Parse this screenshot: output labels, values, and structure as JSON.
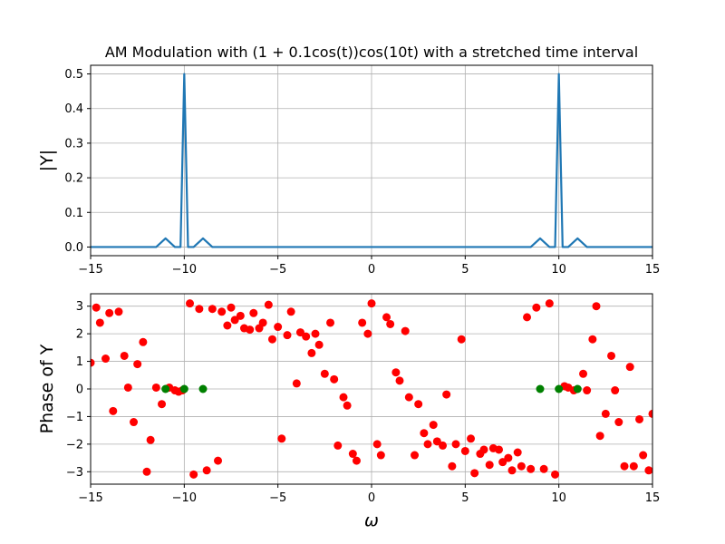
{
  "chart_data": [
    {
      "type": "line",
      "title": "AM Modulation with (1 + 0.1cos(t))cos(10t) with a stretched time interval",
      "xlabel": "",
      "ylabel": "|Y|",
      "xlim": [
        -15,
        15
      ],
      "ylim": [
        -0.025,
        0.525
      ],
      "xticks": [
        -15,
        -10,
        -5,
        0,
        5,
        10,
        15
      ],
      "xtick_labels": [
        "−15",
        "−10",
        "−5",
        "0",
        "5",
        "10",
        "15"
      ],
      "yticks": [
        0.0,
        0.1,
        0.2,
        0.3,
        0.4,
        0.5
      ],
      "ytick_labels": [
        "0.0",
        "0.1",
        "0.2",
        "0.3",
        "0.4",
        "0.5"
      ],
      "grid": true,
      "color": "#1f77b4",
      "x": [
        -15,
        -11.5,
        -11,
        -10.5,
        -10.2,
        -10,
        -9.8,
        -9.5,
        -9,
        -8.5,
        -8,
        8,
        8.5,
        9,
        9.5,
        9.8,
        10,
        10.2,
        10.5,
        11,
        11.5,
        15
      ],
      "y": [
        0,
        0,
        0.025,
        0,
        0,
        0.5,
        0,
        0,
        0.025,
        0,
        0,
        0,
        0,
        0.025,
        0,
        0,
        0.5,
        0,
        0,
        0.025,
        0,
        0
      ]
    },
    {
      "type": "scatter",
      "title": "",
      "xlabel": "ω",
      "ylabel": "Phase of Y",
      "xlim": [
        -15,
        15
      ],
      "ylim": [
        -3.45,
        3.45
      ],
      "xticks": [
        -15,
        -10,
        -5,
        0,
        5,
        10,
        15
      ],
      "xtick_labels": [
        "−15",
        "−10",
        "−5",
        "0",
        "5",
        "10",
        "15"
      ],
      "yticks": [
        -3,
        -2,
        -1,
        0,
        1,
        2,
        3
      ],
      "ytick_labels": [
        "−3",
        "−2",
        "−1",
        "0",
        "1",
        "2",
        "3"
      ],
      "grid": true,
      "series": [
        {
          "color": "#ff0000",
          "points": [
            [
              -15.0,
              0.95
            ],
            [
              -14.7,
              2.95
            ],
            [
              -14.5,
              2.4
            ],
            [
              -14.2,
              1.1
            ],
            [
              -14.0,
              2.75
            ],
            [
              -13.8,
              -0.8
            ],
            [
              -13.5,
              2.8
            ],
            [
              -13.2,
              1.2
            ],
            [
              -13.0,
              0.05
            ],
            [
              -12.7,
              -1.2
            ],
            [
              -12.5,
              0.9
            ],
            [
              -12.2,
              1.7
            ],
            [
              -12.0,
              -3.0
            ],
            [
              -11.8,
              -1.85
            ],
            [
              -11.5,
              0.05
            ],
            [
              -11.2,
              -0.55
            ],
            [
              -10.8,
              0.05
            ],
            [
              -10.5,
              -0.05
            ],
            [
              -10.3,
              -0.1
            ],
            [
              -10.1,
              -0.05
            ],
            [
              -9.7,
              3.1
            ],
            [
              -9.5,
              -3.1
            ],
            [
              -9.2,
              2.9
            ],
            [
              -8.8,
              -2.95
            ],
            [
              -8.5,
              2.9
            ],
            [
              -8.2,
              -2.6
            ],
            [
              -8.0,
              2.8
            ],
            [
              -7.7,
              2.3
            ],
            [
              -7.5,
              2.95
            ],
            [
              -7.3,
              2.5
            ],
            [
              -7.0,
              2.65
            ],
            [
              -6.8,
              2.2
            ],
            [
              -6.5,
              2.15
            ],
            [
              -6.3,
              2.75
            ],
            [
              -6.0,
              2.2
            ],
            [
              -5.8,
              2.4
            ],
            [
              -5.5,
              3.05
            ],
            [
              -5.3,
              1.8
            ],
            [
              -5.0,
              2.25
            ],
            [
              -4.8,
              -1.8
            ],
            [
              -4.5,
              1.95
            ],
            [
              -4.3,
              2.8
            ],
            [
              -4.0,
              0.2
            ],
            [
              -3.8,
              2.05
            ],
            [
              -3.5,
              1.9
            ],
            [
              -3.2,
              1.3
            ],
            [
              -3.0,
              2.0
            ],
            [
              -2.8,
              1.6
            ],
            [
              -2.5,
              0.55
            ],
            [
              -2.2,
              2.4
            ],
            [
              -2.0,
              0.35
            ],
            [
              -1.8,
              -2.05
            ],
            [
              -1.5,
              -0.3
            ],
            [
              -1.3,
              -0.6
            ],
            [
              -1.0,
              -2.35
            ],
            [
              -0.8,
              -2.6
            ],
            [
              -0.5,
              2.4
            ],
            [
              -0.2,
              2.0
            ],
            [
              0.0,
              3.1
            ],
            [
              0.3,
              -2.0
            ],
            [
              0.5,
              -2.4
            ],
            [
              0.8,
              2.6
            ],
            [
              1.0,
              2.35
            ],
            [
              1.3,
              0.6
            ],
            [
              1.5,
              0.3
            ],
            [
              1.8,
              2.1
            ],
            [
              2.0,
              -0.3
            ],
            [
              2.3,
              -2.4
            ],
            [
              2.5,
              -0.55
            ],
            [
              2.8,
              -1.6
            ],
            [
              3.0,
              -2.0
            ],
            [
              3.3,
              -1.3
            ],
            [
              3.5,
              -1.9
            ],
            [
              3.8,
              -2.05
            ],
            [
              4.0,
              -0.2
            ],
            [
              4.3,
              -2.8
            ],
            [
              4.5,
              -2.0
            ],
            [
              4.8,
              1.8
            ],
            [
              5.0,
              -2.25
            ],
            [
              5.3,
              -1.8
            ],
            [
              5.5,
              -3.05
            ],
            [
              5.8,
              -2.35
            ],
            [
              6.0,
              -2.2
            ],
            [
              6.3,
              -2.75
            ],
            [
              6.5,
              -2.15
            ],
            [
              6.8,
              -2.2
            ],
            [
              7.0,
              -2.65
            ],
            [
              7.3,
              -2.5
            ],
            [
              7.5,
              -2.95
            ],
            [
              7.8,
              -2.3
            ],
            [
              8.0,
              -2.8
            ],
            [
              8.3,
              2.6
            ],
            [
              8.5,
              -2.9
            ],
            [
              8.8,
              2.95
            ],
            [
              9.2,
              -2.9
            ],
            [
              9.5,
              3.1
            ],
            [
              9.8,
              -3.1
            ],
            [
              10.3,
              0.1
            ],
            [
              10.5,
              0.05
            ],
            [
              10.8,
              -0.05
            ],
            [
              11.3,
              0.55
            ],
            [
              11.5,
              -0.05
            ],
            [
              11.8,
              1.8
            ],
            [
              12.0,
              3.0
            ],
            [
              12.2,
              -1.7
            ],
            [
              12.5,
              -0.9
            ],
            [
              12.8,
              1.2
            ],
            [
              13.0,
              -0.05
            ],
            [
              13.2,
              -1.2
            ],
            [
              13.5,
              -2.8
            ],
            [
              13.8,
              0.8
            ],
            [
              14.0,
              -2.8
            ],
            [
              14.3,
              -1.1
            ],
            [
              14.5,
              -2.4
            ],
            [
              14.8,
              -2.95
            ],
            [
              15.0,
              -0.9
            ]
          ]
        },
        {
          "color": "#008000",
          "points": [
            [
              -11.0,
              0.0
            ],
            [
              -10.0,
              0.0
            ],
            [
              -9.0,
              0.0
            ],
            [
              9.0,
              0.0
            ],
            [
              10.0,
              0.0
            ],
            [
              11.0,
              0.0
            ]
          ]
        }
      ]
    }
  ]
}
